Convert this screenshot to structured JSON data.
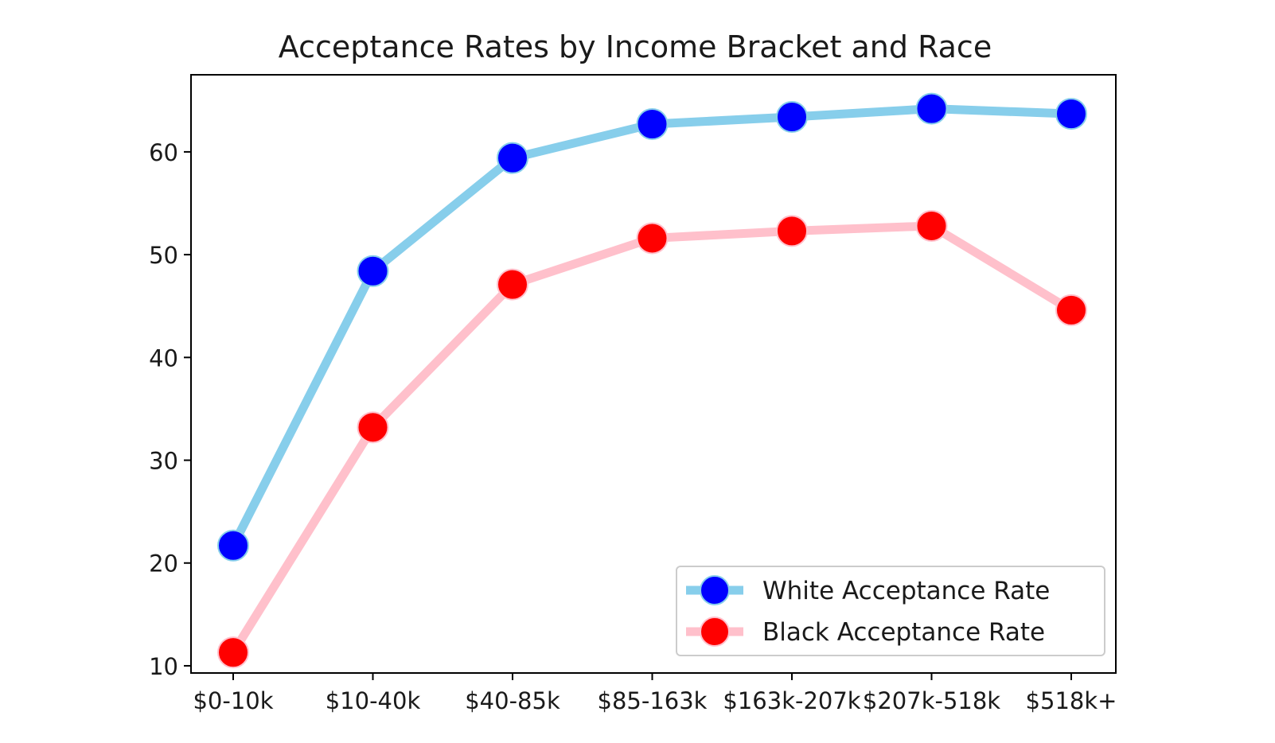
{
  "chart_data": {
    "type": "line",
    "title": "Acceptance Rates by Income Bracket and Race",
    "xlabel": "",
    "ylabel": "",
    "categories": [
      "$0-10k",
      "$10-40k",
      "$40-85k",
      "$85-163k",
      "$163k-207k",
      "$207k-518k",
      "$518k+"
    ],
    "yticks": [
      10,
      20,
      30,
      40,
      50,
      60
    ],
    "ylim": [
      9.3,
      67.5
    ],
    "grid": false,
    "legend_position": "lower-right",
    "series": [
      {
        "name": "White Acceptance Rate",
        "values": [
          21.7,
          48.4,
          59.4,
          62.7,
          63.4,
          64.2,
          63.7
        ],
        "line_color": "#87ceeb",
        "marker_color": "#0000ff"
      },
      {
        "name": "Black Acceptance Rate",
        "values": [
          11.3,
          33.2,
          47.1,
          51.6,
          52.3,
          52.8,
          44.6
        ],
        "line_color": "#ffc0cb",
        "marker_color": "#ff0000"
      }
    ]
  }
}
